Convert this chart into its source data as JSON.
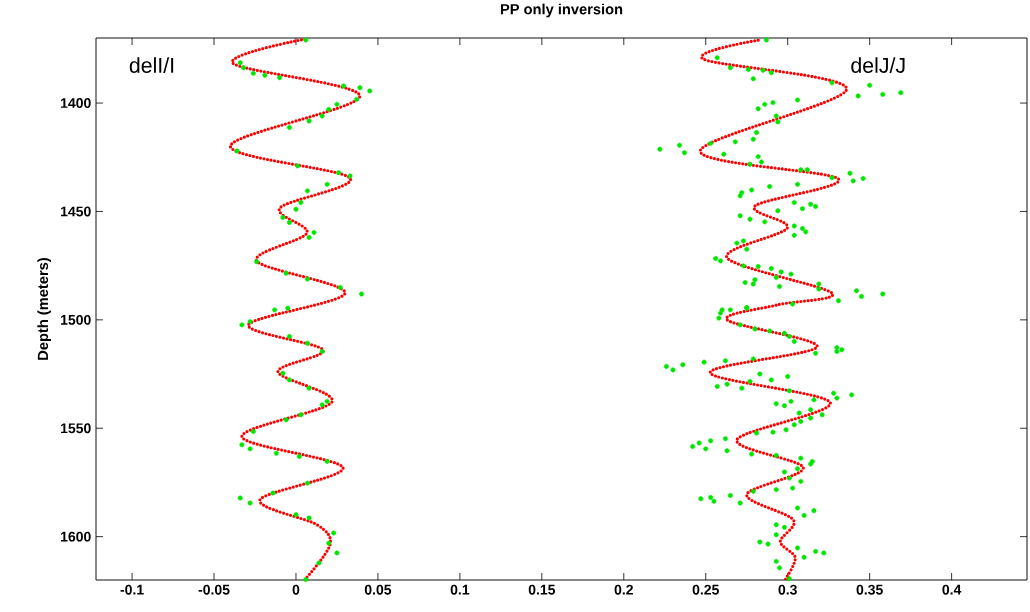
{
  "chart_data": {
    "type": "scatter",
    "title": "PP only inversion",
    "ylabel": "Depth (meters)",
    "annotations": [
      "delI/I",
      "delJ/J"
    ],
    "xlim": [
      -0.122,
      0.446
    ],
    "ylim": [
      1620,
      1370
    ],
    "xticks": [
      -0.1,
      -0.05,
      0,
      0.05,
      0.1,
      0.15,
      0.2,
      0.25,
      0.3,
      0.35,
      0.4
    ],
    "yticks": [
      1400,
      1450,
      1500,
      1550,
      1600
    ],
    "series": [
      {
        "marker": "circle",
        "color": "#00e600",
        "x": [
          0.006,
          -0.034,
          -0.032,
          -0.026,
          -0.019,
          -0.01,
          0.029,
          0.039,
          0.045,
          0.037,
          0.025,
          0.02,
          0.016,
          0.008,
          -0.004,
          -0.036,
          0.001,
          0.026,
          0.033,
          0.019,
          0.007,
          0.003,
          0.0,
          -0.008,
          -0.004,
          0.011,
          0.008,
          -0.024,
          -0.006,
          0.007,
          0.027,
          0.04,
          -0.013,
          -0.005,
          -0.033,
          -0.028,
          -0.004,
          0.007,
          0.016,
          -0.008,
          -0.004,
          0.008,
          0.019,
          0.016,
          0.003,
          -0.006,
          -0.026,
          -0.033,
          -0.028,
          -0.012,
          0.002,
          0.019,
          0.007,
          -0.014,
          -0.034,
          -0.028,
          0.0,
          0.008,
          0.023,
          0.02,
          0.025,
          0.014,
          0.006
        ],
        "values": [
          1370.9,
          1381.4,
          1383.7,
          1386.3,
          1387.2,
          1388.3,
          1392.1,
          1392.9,
          1394.4,
          1398.3,
          1400.6,
          1402.9,
          1406.0,
          1408.3,
          1411.3,
          1422.1,
          1429.0,
          1432.1,
          1433.6,
          1437.5,
          1440.5,
          1445.9,
          1449.0,
          1452.8,
          1455.1,
          1459.7,
          1462.0,
          1473.2,
          1478.5,
          1481.2,
          1485.1,
          1488.1,
          1495.4,
          1494.6,
          1502.3,
          1500.8,
          1507.7,
          1510.8,
          1514.6,
          1524.6,
          1527.7,
          1531.5,
          1537.6,
          1539.2,
          1543.8,
          1546.1,
          1551.5,
          1557.6,
          1559.5,
          1561.5,
          1563.0,
          1565.3,
          1575.3,
          1579.9,
          1582.2,
          1584.5,
          1589.9,
          1591.4,
          1598.3,
          1603.0,
          1607.5,
          1612.1,
          1619.8
        ]
      },
      {
        "marker": "circle",
        "color": "#00e600",
        "x": [
          0.287,
          0.257,
          0.265,
          0.276,
          0.285,
          0.29,
          0.279,
          0.327,
          0.35,
          0.343,
          0.358,
          0.369,
          0.306,
          0.291,
          0.286,
          0.282,
          0.293,
          0.294,
          0.281,
          0.279,
          0.268,
          0.253,
          0.222,
          0.234,
          0.237,
          0.261,
          0.282,
          0.284,
          0.277,
          0.308,
          0.312,
          0.338,
          0.34,
          0.346,
          0.327,
          0.306,
          0.289,
          0.278,
          0.272,
          0.271,
          0.304,
          0.314,
          0.317,
          0.309,
          0.294,
          0.271,
          0.277,
          0.286,
          0.304,
          0.309,
          0.311,
          0.304,
          0.269,
          0.273,
          0.275,
          0.256,
          0.259,
          0.273,
          0.282,
          0.29,
          0.296,
          0.302,
          0.293,
          0.28,
          0.274,
          0.279,
          0.295,
          0.319,
          0.319,
          0.342,
          0.345,
          0.358,
          0.331,
          0.303,
          0.275,
          0.26,
          0.259,
          0.258,
          0.265,
          0.275,
          0.271,
          0.28,
          0.289,
          0.298,
          0.301,
          0.304,
          0.317,
          0.33,
          0.333,
          0.33,
          0.226,
          0.23,
          0.236,
          0.249,
          0.262,
          0.279,
          0.283,
          0.29,
          0.3,
          0.277,
          0.263,
          0.257,
          0.272,
          0.301,
          0.316,
          0.328,
          0.33,
          0.339,
          0.293,
          0.298,
          0.302,
          0.307,
          0.314,
          0.321,
          0.314,
          0.308,
          0.304,
          0.299,
          0.291,
          0.281,
          0.253,
          0.246,
          0.242,
          0.25,
          0.262,
          0.263,
          0.278,
          0.293,
          0.308,
          0.315,
          0.314,
          0.306,
          0.298,
          0.301,
          0.308,
          0.303,
          0.293,
          0.279,
          0.247,
          0.253,
          0.255,
          0.265,
          0.271,
          0.306,
          0.31,
          0.316,
          0.293,
          0.298,
          0.283,
          0.288,
          0.293,
          0.306,
          0.31,
          0.317,
          0.322,
          0.293,
          0.295,
          0.301
        ],
        "values": [
          1370.9,
          1379.1,
          1383.7,
          1384.5,
          1384.9,
          1386.0,
          1388.8,
          1390.6,
          1391.8,
          1396.7,
          1396.0,
          1395.2,
          1398.6,
          1399.8,
          1400.6,
          1402.6,
          1406.0,
          1408.7,
          1413.6,
          1416.7,
          1417.9,
          1418.6,
          1421.3,
          1419.5,
          1422.9,
          1423.6,
          1424.7,
          1427.2,
          1428.2,
          1430.8,
          1430.8,
          1432.4,
          1435.9,
          1434.8,
          1434.4,
          1437.5,
          1438.5,
          1440.1,
          1441.3,
          1442.8,
          1445.9,
          1446.7,
          1447.7,
          1448.7,
          1449.7,
          1452.0,
          1453.6,
          1454.8,
          1456.7,
          1457.9,
          1459.4,
          1461.0,
          1464.6,
          1463.6,
          1467.4,
          1471.7,
          1472.8,
          1475.1,
          1475.4,
          1476.3,
          1477.9,
          1478.9,
          1480.5,
          1481.5,
          1482.8,
          1483.5,
          1484.6,
          1483.5,
          1485.8,
          1486.6,
          1489.2,
          1488.1,
          1491.2,
          1492.7,
          1494.3,
          1495.4,
          1496.9,
          1499.2,
          1495.4,
          1494.6,
          1502.3,
          1504.2,
          1505.1,
          1506.2,
          1507.7,
          1510.0,
          1515.4,
          1512.8,
          1513.8,
          1514.6,
          1521.5,
          1523.1,
          1520.7,
          1519.5,
          1518.9,
          1518.0,
          1525.0,
          1527.7,
          1526.1,
          1528.4,
          1529.7,
          1530.7,
          1531.5,
          1532.7,
          1536.9,
          1533.8,
          1536.1,
          1534.6,
          1538.7,
          1539.6,
          1537.6,
          1543.0,
          1541.5,
          1543.8,
          1545.3,
          1546.9,
          1548.4,
          1550.7,
          1551.8,
          1552.2,
          1555.8,
          1556.8,
          1558.4,
          1559.5,
          1554.8,
          1560.4,
          1561.9,
          1562.5,
          1563.8,
          1565.3,
          1566.5,
          1568.7,
          1570.2,
          1573.0,
          1574.5,
          1577.6,
          1578.3,
          1579.1,
          1582.5,
          1581.9,
          1583.7,
          1581.0,
          1584.5,
          1586.8,
          1590.2,
          1588.0,
          1594.5,
          1595.7,
          1602.5,
          1603.4,
          1599.1,
          1605.2,
          1609.5,
          1606.8,
          1607.5,
          1611.4,
          1614.4,
          1619.4
        ]
      },
      {
        "type": "line",
        "marker": "none",
        "line_style": "dotted",
        "color": "#ff0000",
        "x": [
          0.0055,
          -0.0385,
          0.039,
          -0.04,
          0.033,
          -0.0098,
          0.0067,
          -0.024,
          0.03,
          -0.029,
          0.0165,
          -0.011,
          0.022,
          -0.033,
          0.0287,
          -0.022,
          0.0128,
          0.0208,
          0.0055
        ],
        "values": [
          1370.5,
          1381.6,
          1396.8,
          1419.8,
          1434.6,
          1448.4,
          1459.9,
          1472.8,
          1487.6,
          1502.3,
          1513.8,
          1524.0,
          1537.8,
          1553.9,
          1568.2,
          1583.0,
          1594.5,
          1603.7,
          1619.8
        ]
      },
      {
        "type": "line",
        "marker": "none",
        "line_style": "dotted",
        "color": "#ff0000",
        "x": [
          0.282,
          0.2485,
          0.336,
          0.2466,
          0.331,
          0.28,
          0.2998,
          0.263,
          0.327,
          0.2937,
          0.263,
          0.318,
          0.2527,
          0.326,
          0.269,
          0.3095,
          0.275,
          0.3034,
          0.2955,
          0.3046,
          0.2985
        ],
        "values": [
          1371.0,
          1379.7,
          1393.5,
          1422.1,
          1435.0,
          1447.5,
          1457.6,
          1471.4,
          1487.6,
          1493.1,
          1500.0,
          1512.4,
          1524.4,
          1538.2,
          1555.3,
          1568.2,
          1580.6,
          1592.2,
          1602.3,
          1609.7,
          1619.8
        ]
      }
    ]
  }
}
